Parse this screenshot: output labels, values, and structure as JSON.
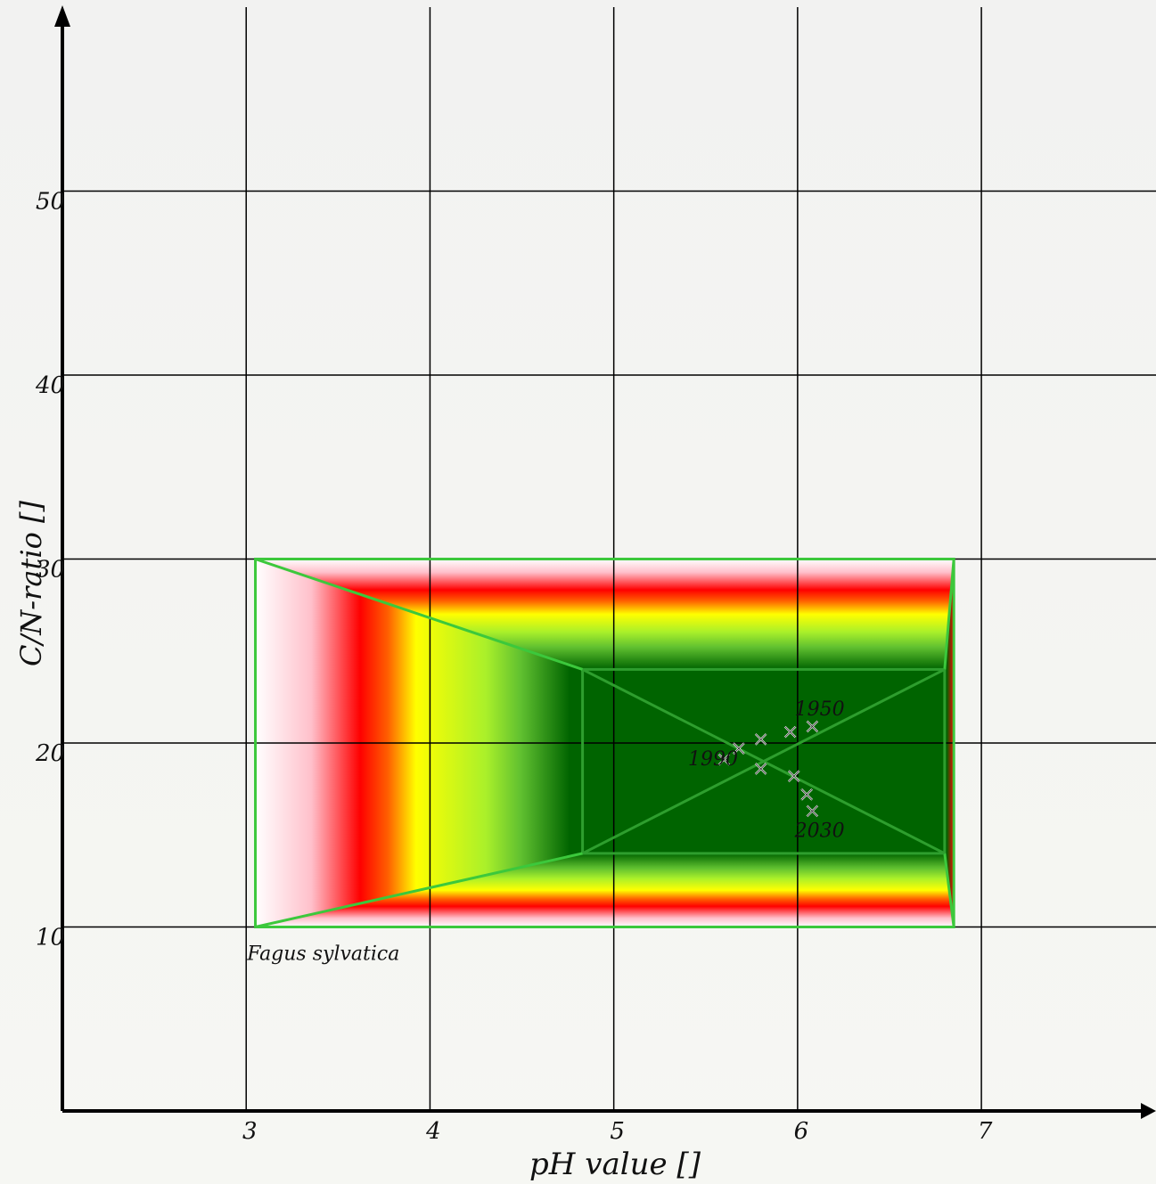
{
  "chart_data": {
    "type": "scatter",
    "title": "",
    "xlabel": "pH value []",
    "ylabel": "C/N-ratio []",
    "xlim": [
      2,
      7.95
    ],
    "ylim": [
      0,
      60
    ],
    "x_ticks": [
      {
        "value": 3,
        "label": "3"
      },
      {
        "value": 4,
        "label": "4"
      },
      {
        "value": 5,
        "label": "5"
      },
      {
        "value": 6,
        "label": "6"
      },
      {
        "value": 7,
        "label": "7"
      }
    ],
    "y_ticks": [
      {
        "value": 10,
        "label": "10"
      },
      {
        "value": 20,
        "label": "20"
      },
      {
        "value": 30,
        "label": "30"
      },
      {
        "value": 40,
        "label": "40"
      },
      {
        "value": 50,
        "label": "50"
      }
    ],
    "grid": true,
    "species_region": {
      "name": "Fagus sylvatica",
      "outer": {
        "x_min": 3.05,
        "x_max": 6.85,
        "y_min": 10,
        "y_max": 30
      },
      "optimum": {
        "x_min": 4.83,
        "x_max": 6.8,
        "y_min": 14,
        "y_max": 24
      }
    },
    "series": [
      {
        "name": "",
        "points": [
          {
            "x": 6.08,
            "y": 20.9
          },
          {
            "x": 5.96,
            "y": 20.6
          },
          {
            "x": 5.8,
            "y": 20.2
          },
          {
            "x": 5.68,
            "y": 19.7
          },
          {
            "x": 5.6,
            "y": 19.1
          },
          {
            "x": 5.8,
            "y": 18.6
          },
          {
            "x": 5.98,
            "y": 18.2
          },
          {
            "x": 6.05,
            "y": 17.2
          },
          {
            "x": 6.08,
            "y": 16.3
          }
        ]
      }
    ],
    "annotations": [
      {
        "text": "1950",
        "x": 6.12,
        "y": 21.5
      },
      {
        "text": "1990",
        "x": 5.54,
        "y": 18.8
      },
      {
        "text": "2030",
        "x": 6.12,
        "y": 14.9
      },
      {
        "text": "Fagus sylvatica",
        "x": 3.42,
        "y": 8.2
      }
    ]
  }
}
